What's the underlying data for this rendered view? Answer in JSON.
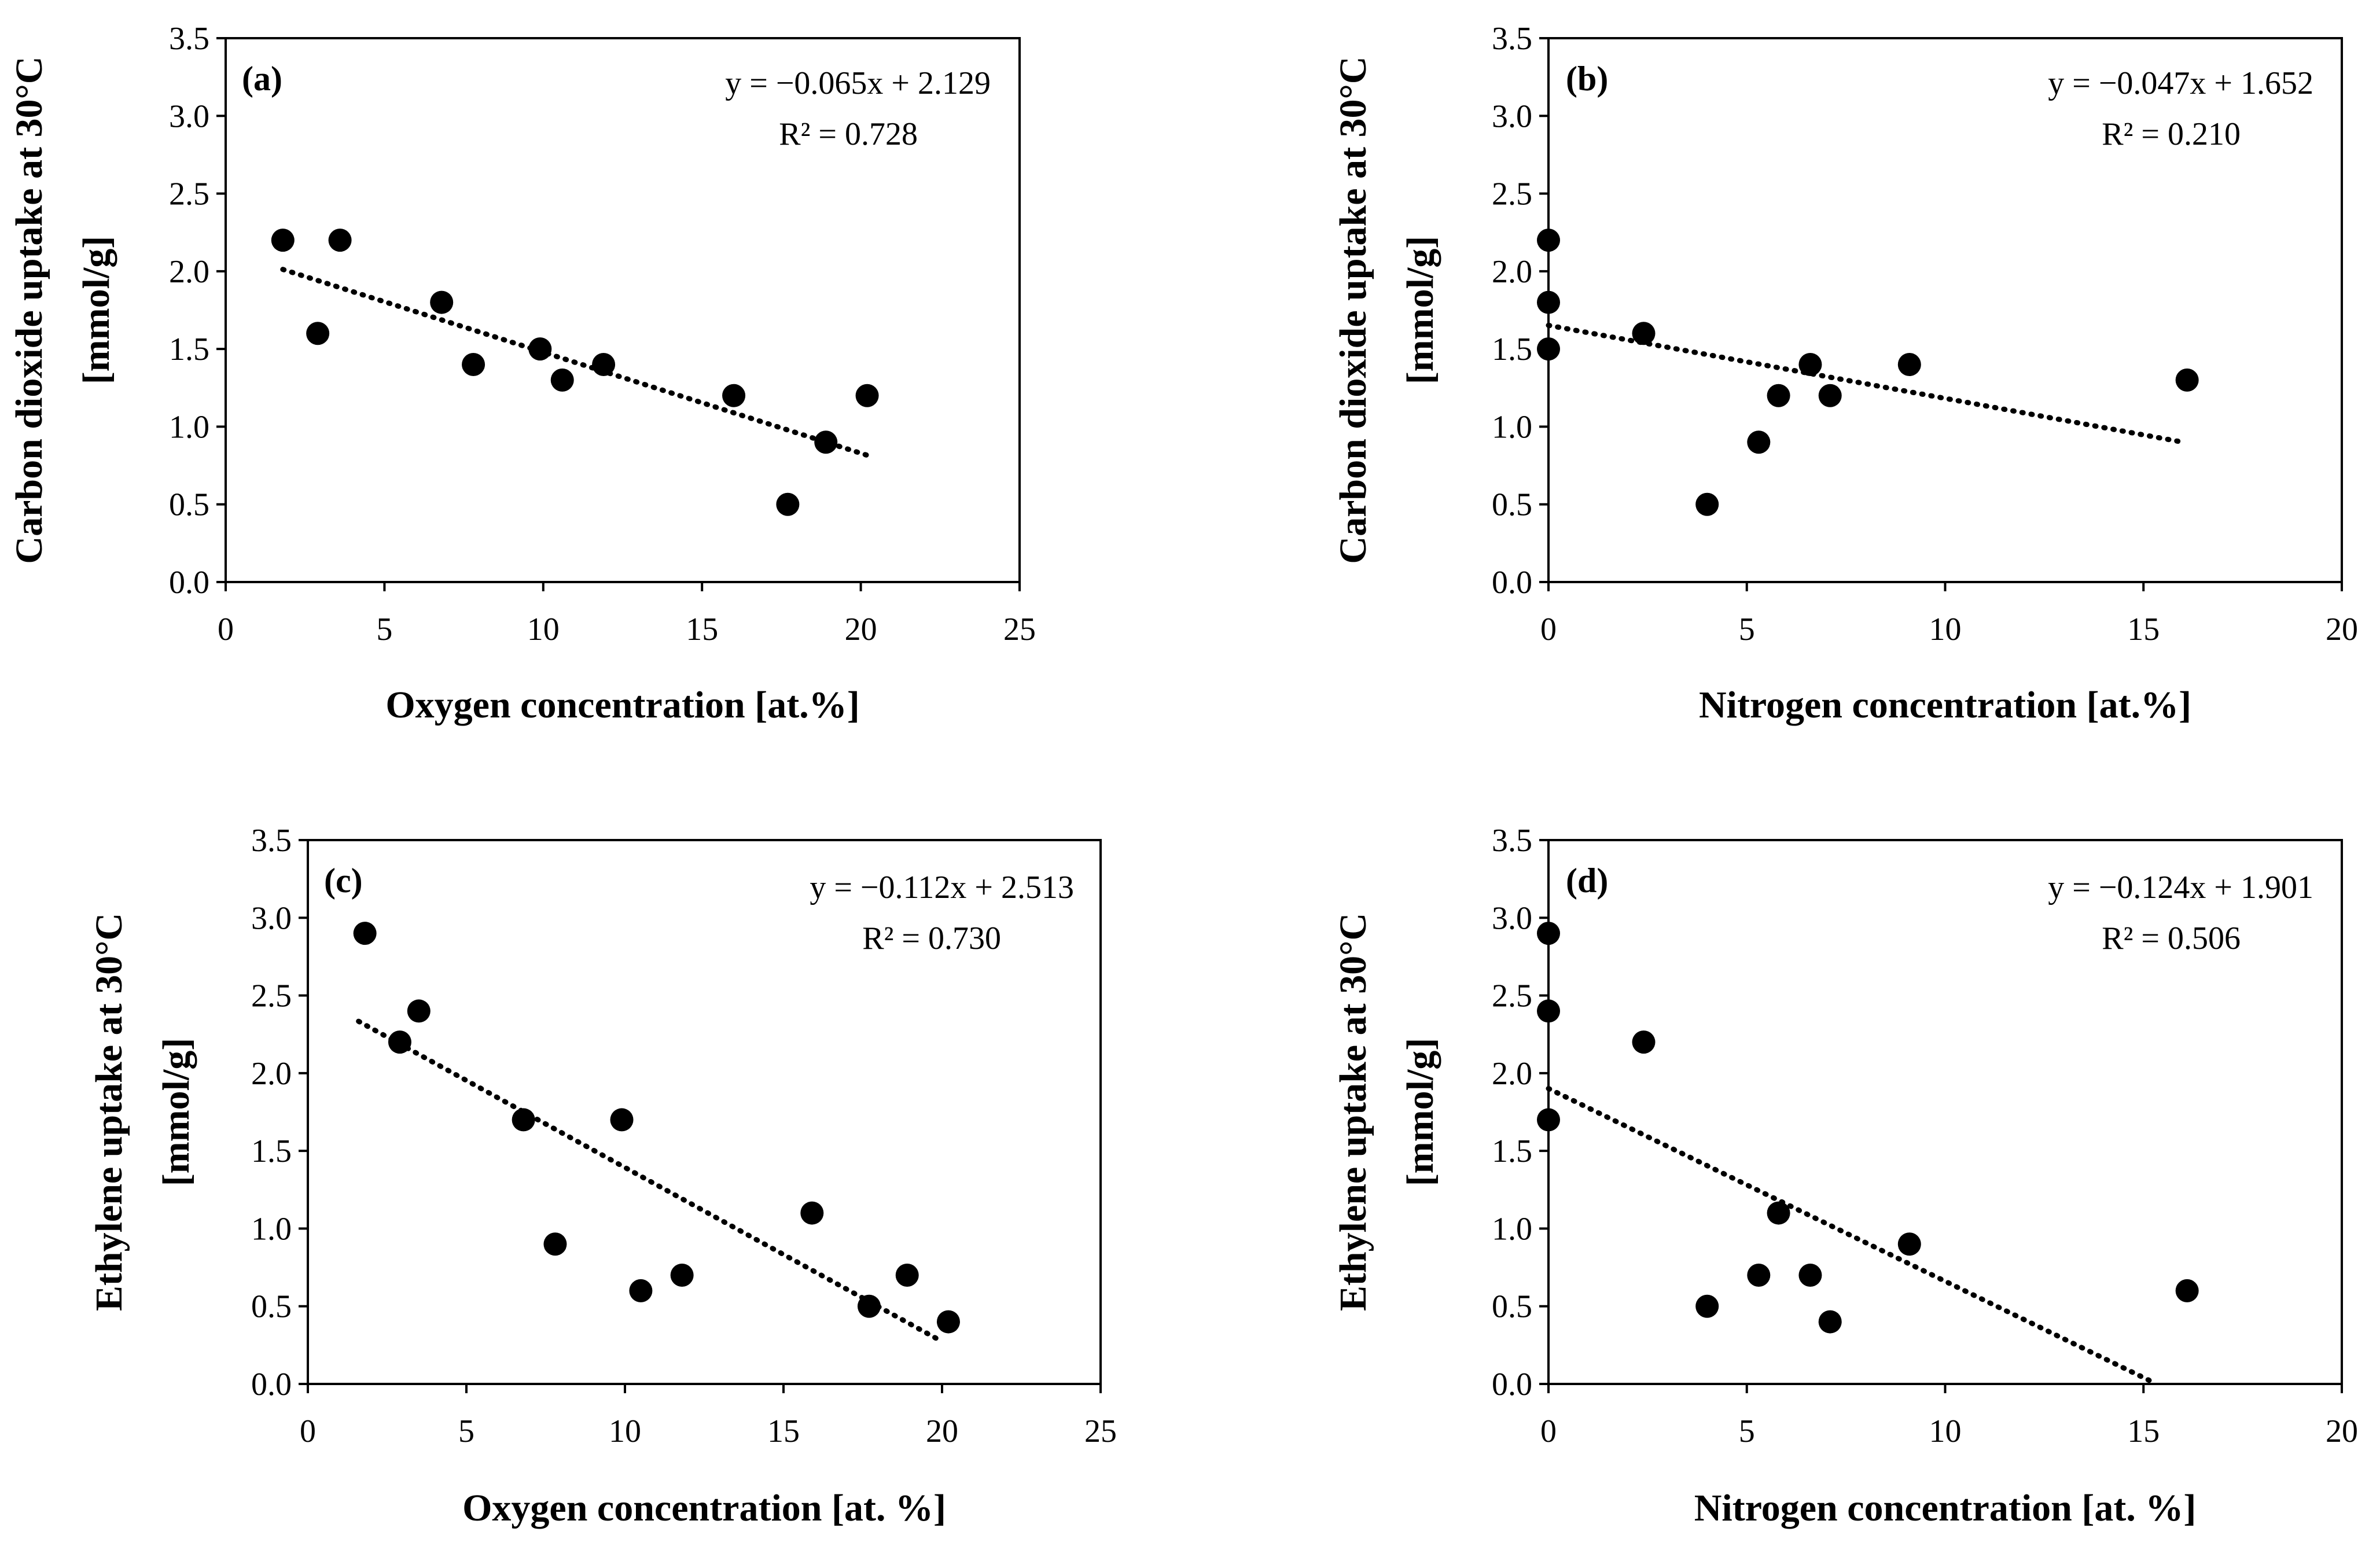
{
  "chart_data": [
    {
      "type": "scatter",
      "panel_label": "(a)",
      "xlabel": "Oxygen concentration [at.%]",
      "ylabel_lines": [
        "Carbon dioxide uptake at 30°C",
        "[mmol/g]"
      ],
      "xlim": [
        0,
        25
      ],
      "ylim": [
        0,
        3.5
      ],
      "xticks": [
        "0",
        "5",
        "10",
        "15",
        "20",
        "25"
      ],
      "yticks": [
        "0.0",
        "0.5",
        "1.0",
        "1.5",
        "2.0",
        "2.5",
        "3.0",
        "3.5"
      ],
      "equation": "y = −0.065x + 2.129",
      "r2": "R² = 0.728",
      "trend": {
        "slope": -0.065,
        "intercept": 2.129,
        "x_range": [
          1.8,
          20.2
        ]
      },
      "points": [
        [
          1.8,
          2.2
        ],
        [
          2.9,
          1.6
        ],
        [
          3.6,
          2.2
        ],
        [
          6.8,
          1.8
        ],
        [
          7.8,
          1.4
        ],
        [
          9.9,
          1.5
        ],
        [
          10.6,
          1.3
        ],
        [
          11.9,
          1.4
        ],
        [
          16.0,
          1.2
        ],
        [
          17.7,
          0.5
        ],
        [
          18.9,
          0.9
        ],
        [
          20.2,
          1.2
        ]
      ]
    },
    {
      "type": "scatter",
      "panel_label": "(b)",
      "xlabel": "Nitrogen concentration [at.%]",
      "ylabel_lines": [
        "Carbon dioxide uptake at 30°C",
        "[mmol/g]"
      ],
      "xlim": [
        0,
        20
      ],
      "ylim": [
        0,
        3.5
      ],
      "xticks": [
        "0",
        "5",
        "10",
        "15",
        "20"
      ],
      "yticks": [
        "0.0",
        "0.5",
        "1.0",
        "1.5",
        "2.0",
        "2.5",
        "3.0",
        "3.5"
      ],
      "equation": "y = −0.047x + 1.652",
      "r2": "R² = 0.210",
      "trend": {
        "slope": -0.047,
        "intercept": 1.652,
        "x_range": [
          0,
          16.0
        ]
      },
      "points": [
        [
          0,
          2.2
        ],
        [
          0,
          1.8
        ],
        [
          0,
          1.5
        ],
        [
          2.4,
          1.6
        ],
        [
          4.0,
          0.5
        ],
        [
          5.3,
          0.9
        ],
        [
          5.8,
          1.2
        ],
        [
          6.6,
          1.4
        ],
        [
          7.1,
          1.2
        ],
        [
          9.1,
          1.4
        ],
        [
          16.1,
          1.3
        ]
      ]
    },
    {
      "type": "scatter",
      "panel_label": "(c)",
      "xlabel": "Oxygen concentration [at. %]",
      "ylabel_lines": [
        "Ethylene uptake at 30°C",
        "[mmol/g]"
      ],
      "xlim": [
        0,
        25
      ],
      "ylim": [
        0,
        3.5
      ],
      "xticks": [
        "0",
        "5",
        "10",
        "15",
        "20",
        "25"
      ],
      "yticks": [
        "0.0",
        "0.5",
        "1.0",
        "1.5",
        "2.0",
        "2.5",
        "3.0",
        "3.5"
      ],
      "equation": "y = −0.112x + 2.513",
      "r2": "R² = 0.730",
      "trend": {
        "slope": -0.112,
        "intercept": 2.513,
        "x_range": [
          1.6,
          20.0
        ]
      },
      "points": [
        [
          1.8,
          2.9
        ],
        [
          2.9,
          2.2
        ],
        [
          3.5,
          2.4
        ],
        [
          6.8,
          1.7
        ],
        [
          7.8,
          0.9
        ],
        [
          9.9,
          1.7
        ],
        [
          10.5,
          0.6
        ],
        [
          11.8,
          0.7
        ],
        [
          15.9,
          1.1
        ],
        [
          17.7,
          0.5
        ],
        [
          18.9,
          0.7
        ],
        [
          20.2,
          0.4
        ]
      ]
    },
    {
      "type": "scatter",
      "panel_label": "(d)",
      "xlabel": "Nitrogen concentration [at. %]",
      "ylabel_lines": [
        "Ethylene uptake at 30°C",
        "[mmol/g]"
      ],
      "xlim": [
        0,
        20
      ],
      "ylim": [
        0,
        3.5
      ],
      "xticks": [
        "0",
        "5",
        "10",
        "15",
        "20"
      ],
      "yticks": [
        "0.0",
        "0.5",
        "1.0",
        "1.5",
        "2.0",
        "2.5",
        "3.0",
        "3.5"
      ],
      "equation": "y = −0.124x + 1.901",
      "r2": "R² = 0.506",
      "trend": {
        "slope": -0.124,
        "intercept": 1.901,
        "x_range": [
          0,
          15.3
        ]
      },
      "points": [
        [
          0,
          2.9
        ],
        [
          0,
          2.4
        ],
        [
          0,
          1.7
        ],
        [
          2.4,
          2.2
        ],
        [
          4.0,
          0.5
        ],
        [
          5.3,
          0.7
        ],
        [
          5.8,
          1.1
        ],
        [
          6.6,
          0.7
        ],
        [
          7.1,
          0.4
        ],
        [
          9.1,
          0.9
        ],
        [
          16.1,
          0.6
        ]
      ]
    }
  ]
}
